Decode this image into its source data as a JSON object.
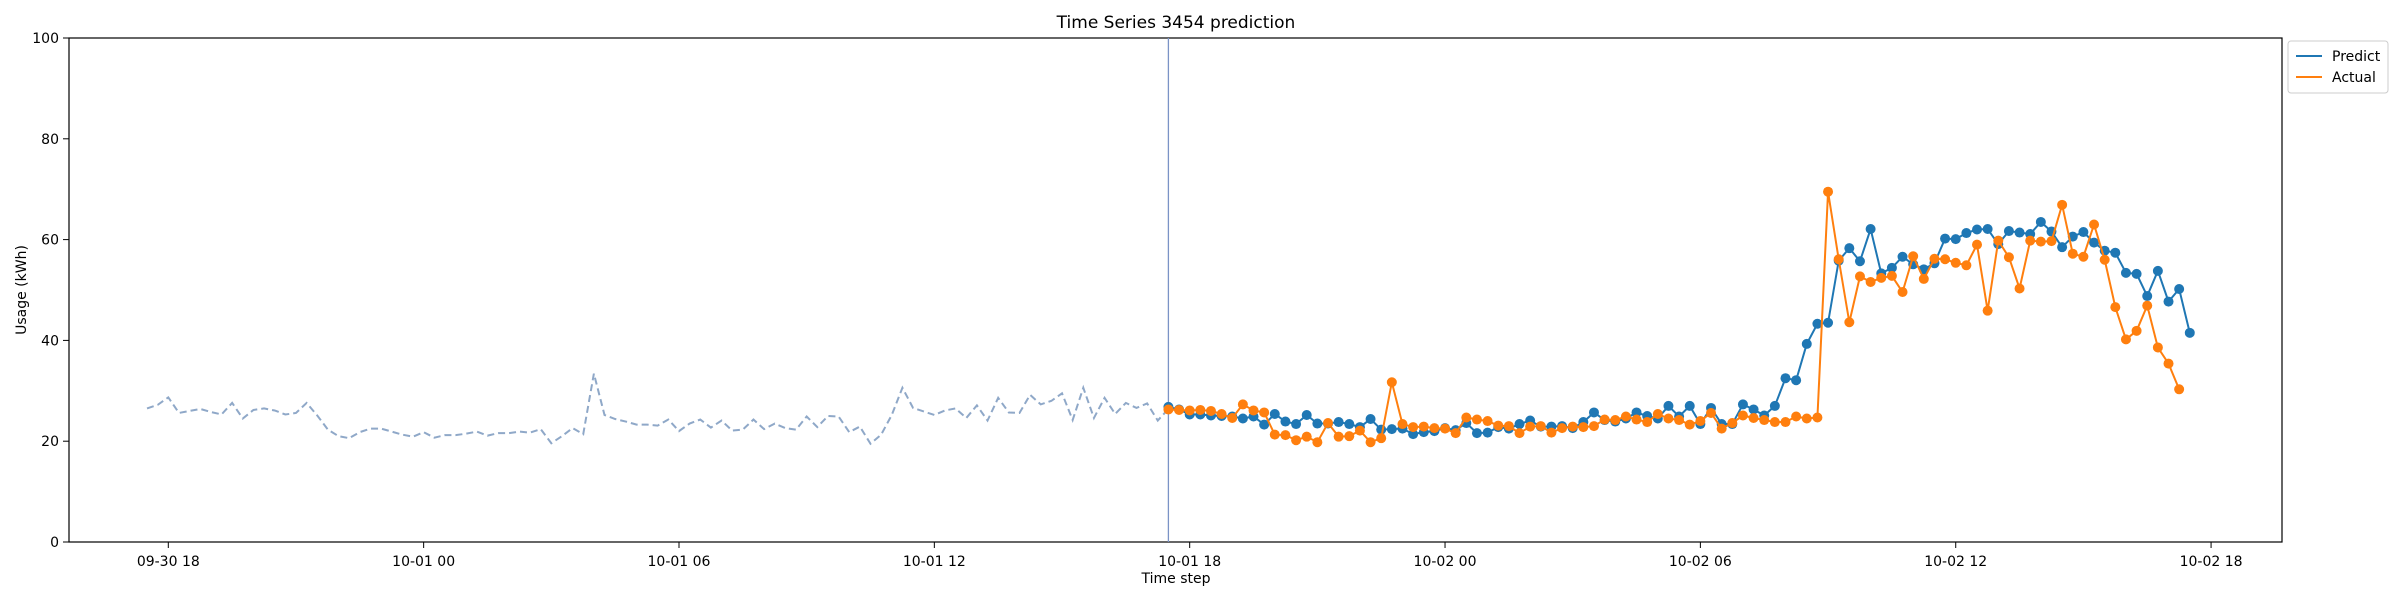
{
  "chart_data": {
    "type": "line",
    "title": "Time Series 3454 prediction",
    "xlabel": "Time step",
    "ylabel": "Usage (kWh)",
    "ylim": [
      0,
      100
    ],
    "yticks": [
      0,
      20,
      40,
      60,
      80,
      100
    ],
    "xlim": [
      "2023-09-30 15:40",
      "2023-10-02 19:40"
    ],
    "xticks": [
      {
        "t": "2023-09-30 18:00",
        "label": "09-30 18"
      },
      {
        "t": "2023-10-01 00:00",
        "label": "10-01 00"
      },
      {
        "t": "2023-10-01 06:00",
        "label": "10-01 06"
      },
      {
        "t": "2023-10-01 12:00",
        "label": "10-01 12"
      },
      {
        "t": "2023-10-01 18:00",
        "label": "10-01 18"
      },
      {
        "t": "2023-10-02 00:00",
        "label": "10-02 00"
      },
      {
        "t": "2023-10-02 06:00",
        "label": "10-02 06"
      },
      {
        "t": "2023-10-02 12:00",
        "label": "10-02 12"
      },
      {
        "t": "2023-10-02 18:00",
        "label": "10-02 18"
      }
    ],
    "step_minutes": 15,
    "forecast_start": "2023-10-01 17:30",
    "legend_position": "top-right-outside",
    "grid": false,
    "series": [
      {
        "name": "History",
        "style": "dashed",
        "color": "#8fa8c8",
        "start": "2023-09-30 17:30",
        "values": [
          26.5,
          27.2,
          28.7,
          25.6,
          26.0,
          26.4,
          25.8,
          25.3,
          27.6,
          24.5,
          26.2,
          26.5,
          26.1,
          25.3,
          25.6,
          27.6,
          25.1,
          22.3,
          21.0,
          20.6,
          21.8,
          22.5,
          22.5,
          21.9,
          21.3,
          20.9,
          21.8,
          20.7,
          21.2,
          21.2,
          21.5,
          21.9,
          21.1,
          21.6,
          21.6,
          21.9,
          21.7,
          22.4,
          19.6,
          21.0,
          22.6,
          21.4,
          33.4,
          25.2,
          24.4,
          23.9,
          23.3,
          23.3,
          23.1,
          24.3,
          22.0,
          23.5,
          24.3,
          22.7,
          24.1,
          22.1,
          22.3,
          24.3,
          22.4,
          23.5,
          22.6,
          22.3,
          24.9,
          22.8,
          25.0,
          24.9,
          21.8,
          22.9,
          19.5,
          21.3,
          25.2,
          30.6,
          26.6,
          25.9,
          25.2,
          26.1,
          26.5,
          24.6,
          27.1,
          24.1,
          28.6,
          25.7,
          25.6,
          29.2,
          27.3,
          28.0,
          29.5,
          24.2,
          30.6,
          24.6,
          28.6,
          25.4,
          27.6,
          26.6,
          27.5,
          24.1,
          26.4,
          26.2
        ]
      },
      {
        "name": "Predict",
        "style": "solid-markers",
        "color": "#1f77b4",
        "start": "2023-10-01 17:30",
        "values": [
          26.8,
          26.3,
          25.3,
          25.3,
          25.1,
          25.0,
          24.9,
          24.5,
          24.9,
          23.3,
          25.4,
          23.9,
          23.4,
          25.2,
          23.5,
          23.5,
          23.8,
          23.4,
          22.8,
          24.4,
          22.3,
          22.4,
          22.5,
          21.4,
          21.8,
          22.0,
          22.6,
          22.2,
          23.6,
          21.6,
          21.7,
          22.8,
          22.5,
          23.4,
          24.1,
          22.9,
          22.9,
          23.0,
          22.6,
          23.8,
          25.7,
          24.2,
          23.9,
          24.5,
          25.7,
          25.0,
          24.5,
          27.0,
          24.9,
          27.0,
          23.4,
          26.6,
          23.4,
          23.4,
          27.3,
          26.3,
          25.1,
          27.0,
          32.5,
          32.1,
          39.3,
          43.3,
          43.5,
          55.8,
          58.3,
          55.7,
          62.1,
          53.3,
          54.4,
          56.6,
          55.1,
          54.1,
          55.3,
          60.2,
          60.1,
          61.3,
          62.0,
          62.1,
          59.1,
          61.7,
          61.4,
          61.1,
          63.5,
          61.6,
          58.5,
          60.6,
          61.5,
          59.4,
          57.8,
          57.4,
          53.4,
          53.2,
          48.8,
          53.8,
          47.7,
          50.2,
          41.5
        ]
      },
      {
        "name": "Actual",
        "style": "solid-markers",
        "color": "#ff7f0e",
        "start": "2023-10-01 17:30",
        "values": [
          26.3,
          26.2,
          26.1,
          26.2,
          26.0,
          25.4,
          24.6,
          27.3,
          26.1,
          25.7,
          21.3,
          21.2,
          20.2,
          20.9,
          19.8,
          23.6,
          20.9,
          21.0,
          22.1,
          19.8,
          20.6,
          31.7,
          23.4,
          22.8,
          22.9,
          22.6,
          22.5,
          21.6,
          24.7,
          24.3,
          24.0,
          23.1,
          23.0,
          21.6,
          22.9,
          23.0,
          21.7,
          22.6,
          22.9,
          22.8,
          23.0,
          24.3,
          24.2,
          24.9,
          24.3,
          23.8,
          25.4,
          24.5,
          24.2,
          23.3,
          24.0,
          25.6,
          22.5,
          23.6,
          25.1,
          24.6,
          24.2,
          23.8,
          23.8,
          24.9,
          24.5,
          24.7,
          69.5,
          56.1,
          43.6,
          52.7,
          51.6,
          52.4,
          52.8,
          49.6,
          56.7,
          52.2,
          56.2,
          56.1,
          55.4,
          54.9,
          59.0,
          45.9,
          59.8,
          56.5,
          50.3,
          59.8,
          59.6,
          59.7,
          66.9,
          57.2,
          56.6,
          63.0,
          56.0,
          46.6,
          40.2,
          41.9,
          46.9,
          38.6,
          35.4,
          30.3
        ]
      }
    ]
  }
}
